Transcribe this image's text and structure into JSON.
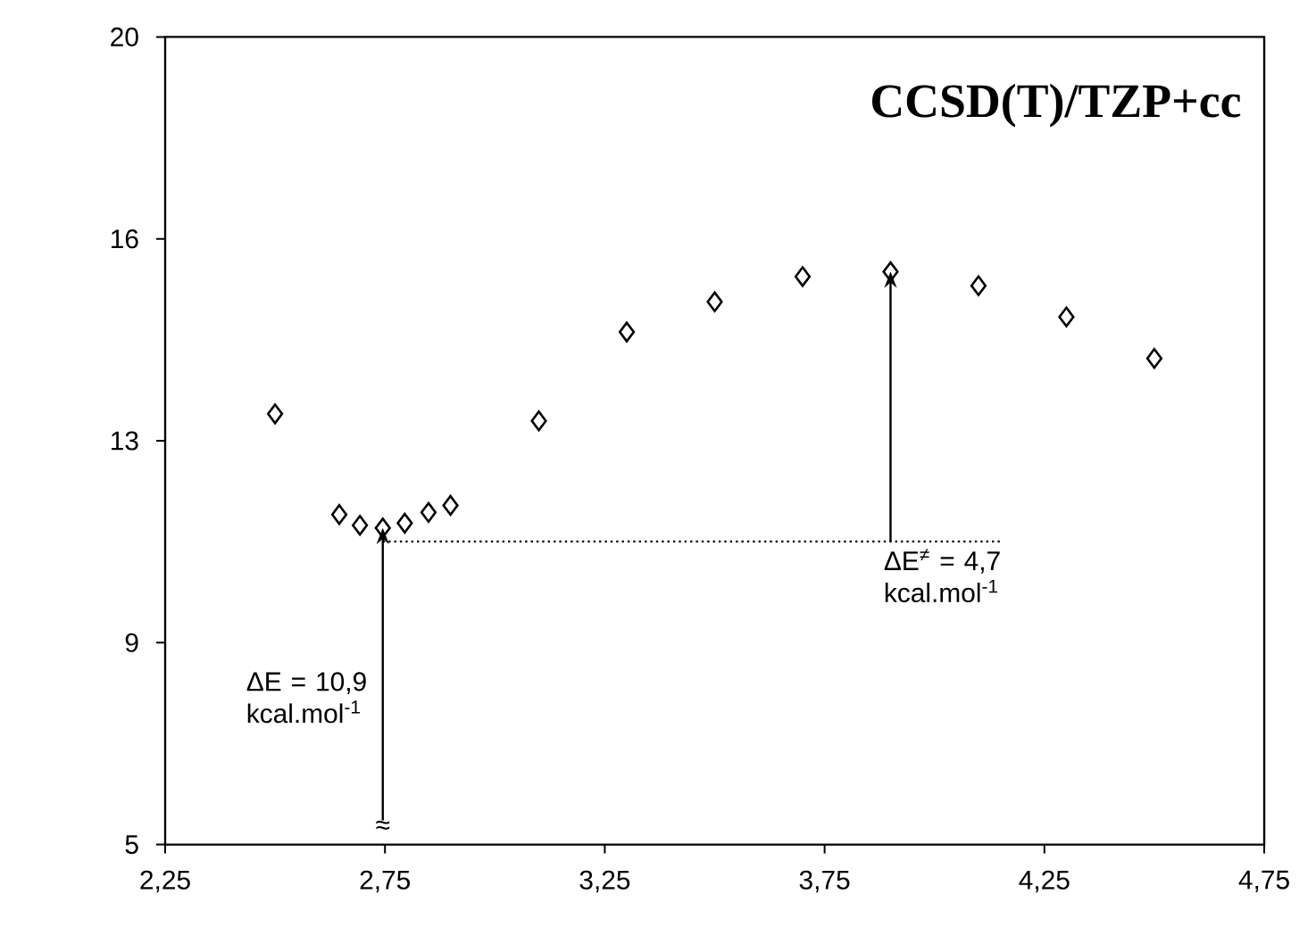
{
  "chart_data": {
    "type": "scatter",
    "title": "CCSD(T)/TZP+cc",
    "series": [
      {
        "color": "#000000",
        "marker": "diamond",
        "x": [
          2.5,
          2.646,
          2.693,
          2.745,
          2.795,
          2.849,
          2.899,
          3.1,
          3.3,
          3.5,
          3.7,
          3.9,
          4.1,
          4.3,
          4.5
        ],
        "values": [
          13.0,
          11.13,
          10.93,
          10.88,
          10.97,
          11.17,
          11.3,
          12.87,
          14.52,
          15.08,
          15.55,
          15.64,
          15.38,
          14.8,
          14.03
        ]
      },
      {
        "type": "line",
        "color": "#000000",
        "line_style": "dotted",
        "x": [
          2.745,
          4.15
        ],
        "values": [
          10.63,
          10.63
        ]
      }
    ],
    "xlim": [
      2.25,
      4.75
    ],
    "ylim": [
      5,
      20
    ],
    "xticks": [
      {
        "value": 2.25,
        "label": "2,25"
      },
      {
        "value": 2.75,
        "label": "2,75"
      },
      {
        "value": 3.25,
        "label": "3,25"
      },
      {
        "value": 3.75,
        "label": "3,75"
      },
      {
        "value": 4.25,
        "label": "4,25"
      },
      {
        "value": 4.75,
        "label": "4,75"
      }
    ],
    "yticks": [
      {
        "value": 5,
        "label": "5"
      },
      {
        "value": 8.75,
        "label": "9"
      },
      {
        "value": 12.5,
        "label": "13"
      },
      {
        "value": 16.25,
        "label": "16"
      },
      {
        "value": 20,
        "label": "20"
      }
    ],
    "annotations": [
      "ΔE = 10,9 kcal.mol$^{-1}$",
      {
        "text": "ΔE$^{≠}$ = 4,7 kcal.mol$^{-1}$",
        "x": 3.9,
        "y": 15.64
      },
      {
        "text": "≈",
        "x": 2.745,
        "y": 10.88
      }
    ]
  }
}
